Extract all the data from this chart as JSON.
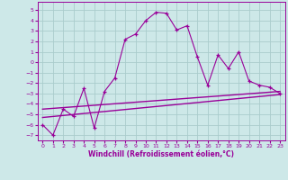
{
  "xlabel": "Windchill (Refroidissement éolien,°C)",
  "bg_color": "#cde8e8",
  "line_color": "#990099",
  "grid_color": "#aacccc",
  "xlim": [
    -0.5,
    23.5
  ],
  "ylim": [
    -7.5,
    5.8
  ],
  "xticks": [
    0,
    1,
    2,
    3,
    4,
    5,
    6,
    7,
    8,
    9,
    10,
    11,
    12,
    13,
    14,
    15,
    16,
    17,
    18,
    19,
    20,
    21,
    22,
    23
  ],
  "yticks": [
    -7,
    -6,
    -5,
    -4,
    -3,
    -2,
    -1,
    0,
    1,
    2,
    3,
    4,
    5
  ],
  "main_x": [
    0,
    1,
    2,
    3,
    4,
    5,
    6,
    7,
    8,
    9,
    10,
    11,
    12,
    13,
    14,
    15,
    16,
    17,
    18,
    19,
    20,
    21,
    22,
    23
  ],
  "main_y": [
    -6.0,
    -7.0,
    -4.5,
    -5.2,
    -2.5,
    -6.3,
    -2.8,
    -1.5,
    2.2,
    2.7,
    4.0,
    4.8,
    4.7,
    3.1,
    3.5,
    0.5,
    -2.2,
    0.7,
    -0.6,
    1.0,
    -1.8,
    -2.2,
    -2.4,
    -3.0
  ],
  "trend1_x": [
    0,
    23
  ],
  "trend1_y": [
    -4.5,
    -2.8
  ],
  "trend2_x": [
    0,
    23
  ],
  "trend2_y": [
    -5.2,
    -3.3
  ]
}
